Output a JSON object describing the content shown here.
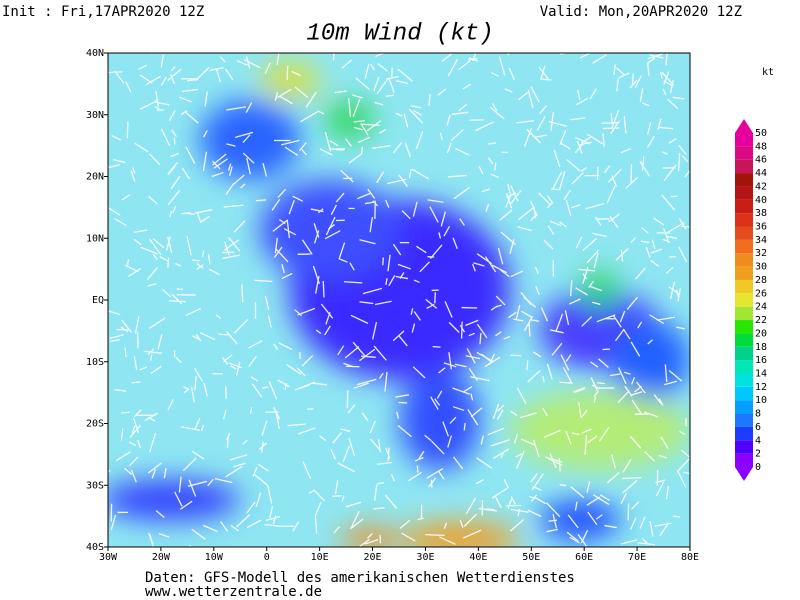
{
  "header": {
    "init": "Init : Fri,17APR2020 12Z",
    "valid": "Valid: Mon,20APR2020 12Z",
    "title": "10m Wind (kt)"
  },
  "map": {
    "lat_labels": [
      "40N",
      "30N",
      "20N",
      "10N",
      "EQ",
      "10S",
      "20S",
      "30S",
      "40S"
    ],
    "lon_labels": [
      "30W",
      "20W",
      "10W",
      "0",
      "10E",
      "20E",
      "30E",
      "40E",
      "50E",
      "60E",
      "70E",
      "80E"
    ]
  },
  "colorbar": {
    "unit": "kt",
    "labels": [
      0,
      2,
      4,
      6,
      8,
      10,
      12,
      14,
      16,
      18,
      20,
      22,
      24,
      26,
      28,
      30,
      32,
      34,
      36,
      38,
      40,
      42,
      44,
      46,
      48,
      50
    ],
    "colors": [
      "#8c00ff",
      "#5000ff",
      "#1e3cff",
      "#1e78ff",
      "#00a0ff",
      "#00c8ff",
      "#00e1e1",
      "#00e6b4",
      "#00d28c",
      "#00dc3c",
      "#28e600",
      "#a0e632",
      "#e6e632",
      "#f0c828",
      "#f0a01e",
      "#f08c1e",
      "#f06e1e",
      "#e64b1e",
      "#dc3219",
      "#c81e14",
      "#b41414",
      "#a0140a",
      "#c8145a",
      "#dc0a82",
      "#e6009b"
    ]
  },
  "footer": {
    "line1": "Daten: GFS-Modell des amerikanischen Wetterdienstes",
    "line2": "www.wetterzentrale.de"
  }
}
